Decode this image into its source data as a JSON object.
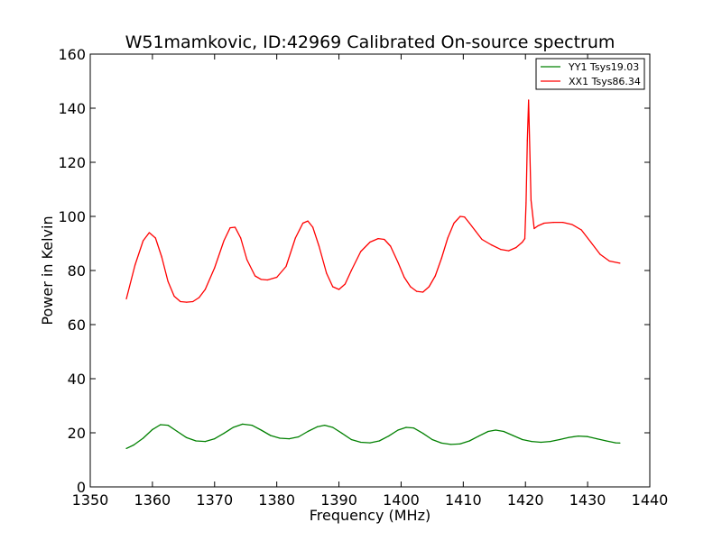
{
  "chart_data": {
    "type": "line",
    "title": "W51mamkovic, ID:42969 Calibrated On-source spectrum",
    "xlabel": "Frequency (MHz)",
    "ylabel": "Power in Kelvin",
    "xlim": [
      1350,
      1440
    ],
    "ylim": [
      0,
      160
    ],
    "xticks": [
      "1350",
      "1360",
      "1370",
      "1380",
      "1390",
      "1400",
      "1410",
      "1420",
      "1430",
      "1440"
    ],
    "yticks": [
      "0",
      "20",
      "40",
      "60",
      "80",
      "100",
      "120",
      "140",
      "160"
    ],
    "grid": false,
    "legend_position": "top-right",
    "series": [
      {
        "name": "YY1 Tsys19.03",
        "color": "#008000",
        "x": [
          1355.8,
          1357,
          1358.5,
          1360,
          1361.3,
          1362.5,
          1364,
          1365.5,
          1367,
          1368.5,
          1370,
          1371.5,
          1373,
          1374.5,
          1376,
          1377.5,
          1379,
          1380.5,
          1382,
          1383.5,
          1385,
          1386.5,
          1387.7,
          1389,
          1390.5,
          1392,
          1393.5,
          1395,
          1396.5,
          1398,
          1399.5,
          1400.8,
          1402,
          1403.5,
          1405,
          1406.5,
          1408,
          1409.5,
          1411,
          1412.5,
          1414,
          1415.2,
          1416.5,
          1418,
          1419.5,
          1421,
          1422.5,
          1424,
          1425.5,
          1427,
          1428.5,
          1430,
          1431.5,
          1433,
          1434.5,
          1435.2
        ],
        "values": [
          14.2,
          15.5,
          18,
          21.2,
          23,
          22.8,
          20.5,
          18.2,
          17,
          16.8,
          17.8,
          19.8,
          22,
          23.2,
          22.8,
          21,
          19,
          18,
          17.8,
          18.5,
          20.5,
          22.2,
          22.8,
          22,
          19.8,
          17.5,
          16.5,
          16.3,
          17,
          18.8,
          21,
          22,
          21.8,
          19.8,
          17.5,
          16.2,
          15.7,
          15.9,
          17,
          18.8,
          20.5,
          21,
          20.5,
          19,
          17.5,
          16.8,
          16.5,
          16.8,
          17.5,
          18.3,
          18.8,
          18.6,
          17.8,
          17,
          16.3,
          16.2
        ]
      },
      {
        "name": "XX1 Tsys86.34",
        "color": "#ff0000",
        "x": [
          1355.8,
          1357.2,
          1358.5,
          1359.5,
          1360.5,
          1361.5,
          1362.5,
          1363.5,
          1364.5,
          1365.5,
          1366.5,
          1367.5,
          1368.5,
          1370,
          1371.5,
          1372.5,
          1373.3,
          1374.2,
          1375.2,
          1376.5,
          1377.5,
          1378.5,
          1380,
          1381.5,
          1383,
          1384.2,
          1385,
          1385.8,
          1386.8,
          1388,
          1389,
          1390,
          1391,
          1392,
          1393.5,
          1395,
          1396.3,
          1397.3,
          1398.3,
          1399.5,
          1400.5,
          1401.5,
          1402.5,
          1403.5,
          1404.5,
          1405.5,
          1406.5,
          1407.5,
          1408.5,
          1409.5,
          1410.2,
          1411,
          1412,
          1413,
          1414.5,
          1416,
          1417.3,
          1418.5,
          1419.5,
          1419.9,
          1420.1,
          1420.3,
          1420.5,
          1420.9,
          1421.4,
          1422,
          1423,
          1424.5,
          1426,
          1427.5,
          1429,
          1430.5,
          1432,
          1433.5,
          1435.2
        ],
        "values": [
          69.5,
          82,
          91,
          94,
          92,
          85,
          76,
          70.5,
          68.5,
          68.3,
          68.5,
          70,
          73,
          81,
          91,
          95.8,
          96,
          92,
          84,
          78,
          76.7,
          76.5,
          77.5,
          81.5,
          92,
          97.5,
          98.3,
          96,
          89,
          79,
          74,
          73,
          75,
          80,
          87,
          90.5,
          91.8,
          91.5,
          89,
          83,
          77.5,
          74,
          72.3,
          72,
          74,
          78,
          84.5,
          92,
          97.5,
          100,
          99.8,
          97.5,
          94.5,
          91.5,
          89.5,
          87.8,
          87.3,
          88.5,
          90.5,
          91.8,
          105,
          128,
          143,
          106,
          95.5,
          96.5,
          97.5,
          97.8,
          97.8,
          97,
          95,
          90.5,
          86,
          83.5,
          82.7
        ]
      }
    ]
  }
}
